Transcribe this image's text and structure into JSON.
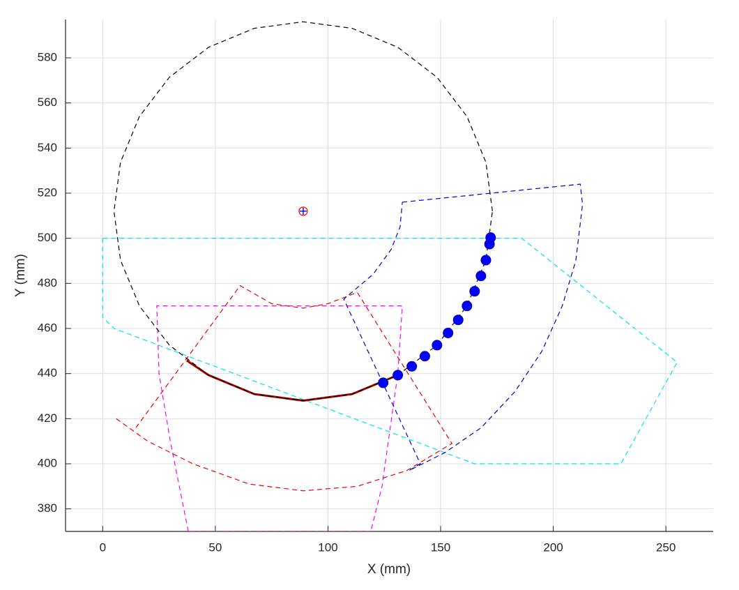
{
  "chart_data": {
    "type": "line",
    "x_label": "X (mm)",
    "y_label": "Y (mm)",
    "xlim": [
      -16.5,
      271
    ],
    "ylim": [
      370,
      597
    ],
    "xticks": [
      0,
      50,
      100,
      150,
      200,
      250
    ],
    "yticks": [
      380,
      400,
      420,
      440,
      460,
      480,
      500,
      520,
      540,
      560,
      580
    ],
    "grid": true,
    "series": [
      {
        "color": "#00e5ee",
        "style": "dashed",
        "x": [
          0,
          186,
          255,
          230,
          165,
          5,
          0,
          0
        ],
        "y": [
          500,
          500,
          445,
          400,
          400,
          460,
          465,
          500
        ]
      },
      {
        "color": "#ff00ff",
        "style": "dashed",
        "x": [
          38,
          34,
          30,
          25,
          24,
          133,
          131,
          124,
          119,
          38
        ],
        "y": [
          370,
          390,
          410,
          440,
          470,
          470,
          440,
          390,
          370,
          370
        ]
      },
      {
        "color": "#0000cc",
        "style": "dashed",
        "x": [
          133,
          212,
          213,
          210,
          204,
          195,
          183,
          168,
          152,
          136,
          141,
          107,
          120,
          128,
          132,
          133
        ],
        "y": [
          516,
          524,
          515,
          490,
          470,
          450,
          432,
          416,
          405,
          397,
          400,
          473,
          484,
          495,
          505,
          516
        ]
      },
      {
        "color": "#ee0000",
        "style": "dashed",
        "x": [
          6,
          20,
          40,
          65,
          89,
          113,
          135,
          155,
          113,
          100,
          89,
          75,
          61,
          14
        ],
        "y": [
          420,
          410,
          400,
          391,
          388,
          390,
          397,
          409,
          476,
          471,
          469,
          471,
          479,
          415
        ]
      },
      {
        "color": "#a00000",
        "style": "solid",
        "x": [
          37.3,
          47,
          67.3,
          89,
          110.7,
          131
        ],
        "y": [
          445.8,
          439.3,
          430.9,
          428,
          430.9,
          439.3
        ]
      },
      {
        "color": "#000000",
        "style": "dashed",
        "x": [
          173,
          170.1,
          161.7,
          148.4,
          131,
          110.7,
          89,
          67.3,
          47,
          29.6,
          16.3,
          7.9,
          5,
          7.9,
          16.3,
          29.6,
          47,
          67.3,
          89,
          110.7,
          131,
          148.4,
          161.7,
          170.1,
          173
        ],
        "y": [
          512,
          533.7,
          554,
          571.4,
          584.7,
          593.1,
          596,
          593.1,
          584.7,
          571.4,
          554,
          533.7,
          512,
          490.3,
          470,
          452.6,
          439.3,
          430.9,
          428,
          430.9,
          439.3,
          452.6,
          470,
          490.3,
          512
        ]
      },
      {
        "color": "#0000ff",
        "style": "markers",
        "x": [
          124.5,
          131,
          137.2,
          143,
          148.4,
          153.3,
          157.8,
          161.7,
          165.1,
          167.9,
          170.1,
          171.7,
          172.2
        ],
        "y": [
          435.9,
          439.3,
          443.2,
          447.7,
          452.6,
          458,
          463.8,
          470,
          476.5,
          483.3,
          490.3,
          497.4,
          500.3
        ]
      },
      {
        "color": "#ff0000",
        "style": "ring",
        "x": [
          89
        ],
        "y": [
          512
        ]
      },
      {
        "color": "#0000ff",
        "style": "plus",
        "x": [
          89
        ],
        "y": [
          512
        ]
      }
    ]
  }
}
